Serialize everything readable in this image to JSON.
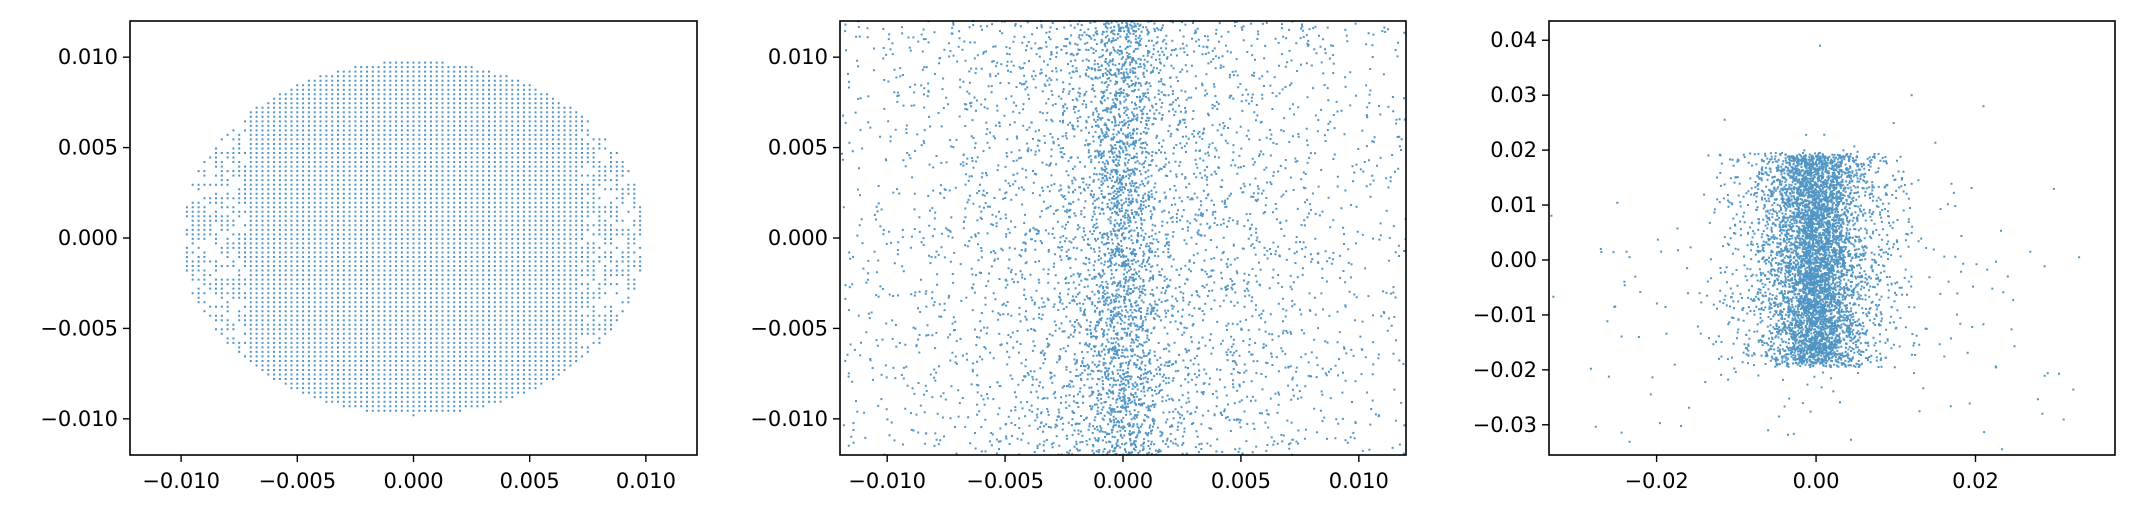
{
  "figure": {
    "point_color": "#1f77b4",
    "axis_color": "#000000"
  },
  "chart_data": [
    {
      "type": "scatter",
      "title": "",
      "xlabel": "",
      "ylabel": "",
      "grid": false,
      "legend": "none",
      "xlim": [
        -0.0122,
        0.0122
      ],
      "ylim": [
        -0.012,
        0.012
      ],
      "xticks": [
        -0.01,
        -0.005,
        0.0,
        0.005,
        0.01
      ],
      "xtick_labels": [
        "−0.010",
        "−0.005",
        "0.000",
        "0.005",
        "0.010"
      ],
      "yticks": [
        -0.01,
        -0.005,
        0.0,
        0.005,
        0.01
      ],
      "ytick_labels": [
        "−0.010",
        "−0.005",
        "0.000",
        "0.005",
        "0.010"
      ],
      "series": [
        {
          "color": "#1f77b4",
          "distribution": "dense regular grid filling an ellipse, centred (0, 0), semi-axis x ≈ 0.0100, semi-axis y ≈ 0.0098, with sparser scattered points near the left and right rims (|x| > 0.007)",
          "x_range": [
            -0.01,
            0.01
          ],
          "y_range": [
            -0.0098,
            0.0098
          ],
          "grid_step": 0.00025
        }
      ]
    },
    {
      "type": "scatter",
      "title": "",
      "xlabel": "",
      "ylabel": "",
      "grid": false,
      "legend": "none",
      "xlim": [
        -0.012,
        0.012
      ],
      "ylim": [
        -0.012,
        0.012
      ],
      "xticks": [
        -0.01,
        -0.005,
        0.0,
        0.005,
        0.01
      ],
      "xtick_labels": [
        "−0.010",
        "−0.005",
        "0.000",
        "0.005",
        "0.010"
      ],
      "yticks": [
        -0.01,
        -0.005,
        0.0,
        0.005,
        0.01
      ],
      "ytick_labels": [
        "−0.010",
        "−0.005",
        "0.000",
        "0.005",
        "0.010"
      ],
      "series": [
        {
          "color": "#1f77b4",
          "distribution": "points spread over the whole visible window, uniform in y, concentrated in a narrow vertical band at x ≈ 0 (band half-width ≈ 0.0008) with a broader spread of half-width ≈ 0.004 and a uniform background out to the edges",
          "x_center": 0.0,
          "x_band_sd": 0.0008,
          "x_spread_sd": 0.004,
          "y_range": [
            -0.012,
            0.012
          ]
        }
      ]
    },
    {
      "type": "scatter",
      "title": "",
      "xlabel": "",
      "ylabel": "",
      "grid": false,
      "legend": "none",
      "xlim": [
        -0.0335,
        0.0375
      ],
      "ylim": [
        -0.0355,
        0.0435
      ],
      "xticks": [
        -0.02,
        0.0,
        0.02
      ],
      "xtick_labels": [
        "−0.02",
        "0.00",
        "0.02"
      ],
      "yticks": [
        -0.03,
        -0.02,
        -0.01,
        0.0,
        0.01,
        0.02,
        0.03,
        0.04
      ],
      "ytick_labels": [
        "−0.03",
        "−0.02",
        "−0.01",
        "0.00",
        "0.01",
        "0.02",
        "0.03",
        "0.04"
      ],
      "series": [
        {
          "color": "#1f77b4",
          "distribution": "dense blob centred (0, 0) roughly spanning x ∈ [−0.012, 0.012], y ∈ [−0.019, 0.019], densest in a vertical core |x| < 0.004; sparse halo extending to x ≈ −0.029 … 0.033 and y ≈ −0.031 … 0.039",
          "core_x_sd": 0.0022,
          "core_y_range": [
            -0.019,
            0.019
          ],
          "blob_x_sd": 0.005,
          "halo_x_range": [
            -0.029,
            0.033
          ],
          "halo_y_range": [
            -0.031,
            0.039
          ]
        }
      ]
    }
  ]
}
